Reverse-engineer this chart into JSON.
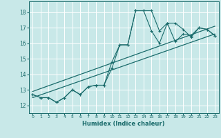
{
  "xlabel": "Humidex (Indice chaleur)",
  "xlim": [
    -0.5,
    23.5
  ],
  "ylim": [
    11.5,
    18.7
  ],
  "xticks": [
    0,
    1,
    2,
    3,
    4,
    5,
    6,
    7,
    8,
    9,
    10,
    11,
    12,
    13,
    14,
    15,
    16,
    17,
    18,
    19,
    20,
    21,
    22,
    23
  ],
  "yticks": [
    12,
    13,
    14,
    15,
    16,
    17,
    18
  ],
  "bg_color": "#c8e8e8",
  "line_color": "#1a6b6b",
  "grid_color": "#ffffff",
  "series1_x": [
    0,
    1,
    2,
    3,
    4,
    5,
    6,
    7,
    8,
    9,
    10,
    11,
    12,
    13,
    14,
    15,
    16,
    17,
    18,
    19,
    20,
    21,
    22,
    23
  ],
  "series1_y": [
    12.7,
    12.5,
    12.5,
    12.2,
    12.5,
    13.0,
    12.7,
    13.2,
    13.3,
    13.3,
    14.8,
    15.9,
    15.9,
    18.1,
    18.1,
    18.1,
    16.8,
    17.3,
    16.1,
    16.6,
    16.5,
    17.0,
    16.9,
    16.5
  ],
  "series2_x": [
    0,
    1,
    2,
    3,
    4,
    5,
    6,
    7,
    8,
    9,
    10,
    11,
    12,
    13,
    14,
    15,
    16,
    17,
    18,
    19,
    20,
    21,
    22,
    23
  ],
  "series2_y": [
    12.7,
    12.5,
    12.5,
    12.2,
    12.5,
    13.0,
    12.7,
    13.2,
    13.3,
    13.3,
    14.4,
    15.9,
    15.9,
    18.1,
    18.1,
    16.8,
    16.0,
    17.3,
    17.3,
    16.9,
    16.4,
    17.0,
    16.9,
    16.5
  ],
  "trend1_x": [
    0,
    23
  ],
  "trend1_y": [
    12.5,
    16.6
  ],
  "trend2_x": [
    0,
    23
  ],
  "trend2_y": [
    12.9,
    17.1
  ]
}
